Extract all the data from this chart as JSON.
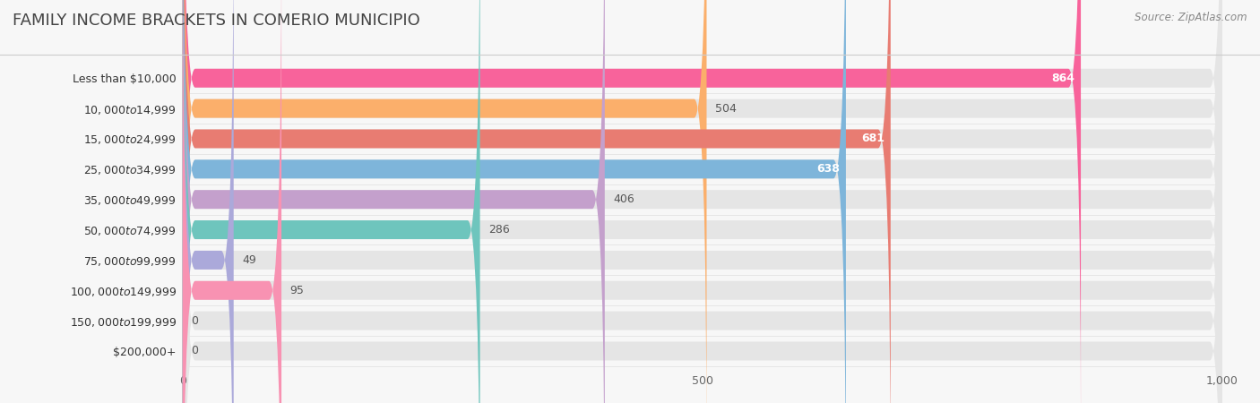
{
  "title": "FAMILY INCOME BRACKETS IN COMERIO MUNICIPIO",
  "source": "Source: ZipAtlas.com",
  "categories": [
    "Less than $10,000",
    "$10,000 to $14,999",
    "$15,000 to $24,999",
    "$25,000 to $34,999",
    "$35,000 to $49,999",
    "$50,000 to $74,999",
    "$75,000 to $99,999",
    "$100,000 to $149,999",
    "$150,000 to $199,999",
    "$200,000+"
  ],
  "values": [
    864,
    504,
    681,
    638,
    406,
    286,
    49,
    95,
    0,
    0
  ],
  "bar_colors": [
    "#F8639B",
    "#FBAF6B",
    "#E87C72",
    "#7EB5DA",
    "#C4A0CC",
    "#6EC5BD",
    "#ABA9DA",
    "#F892B2",
    "#F9CA7B",
    "#F2ABA0"
  ],
  "background_color": "#f7f7f7",
  "bar_bg_color": "#e5e5e5",
  "xlim": [
    0,
    1000
  ],
  "xticks": [
    0,
    500,
    1000
  ],
  "xtick_labels": [
    "0",
    "500",
    "1,000"
  ],
  "title_fontsize": 13,
  "label_fontsize": 9,
  "value_fontsize": 9,
  "source_fontsize": 8.5,
  "value_inside_threshold": 550
}
